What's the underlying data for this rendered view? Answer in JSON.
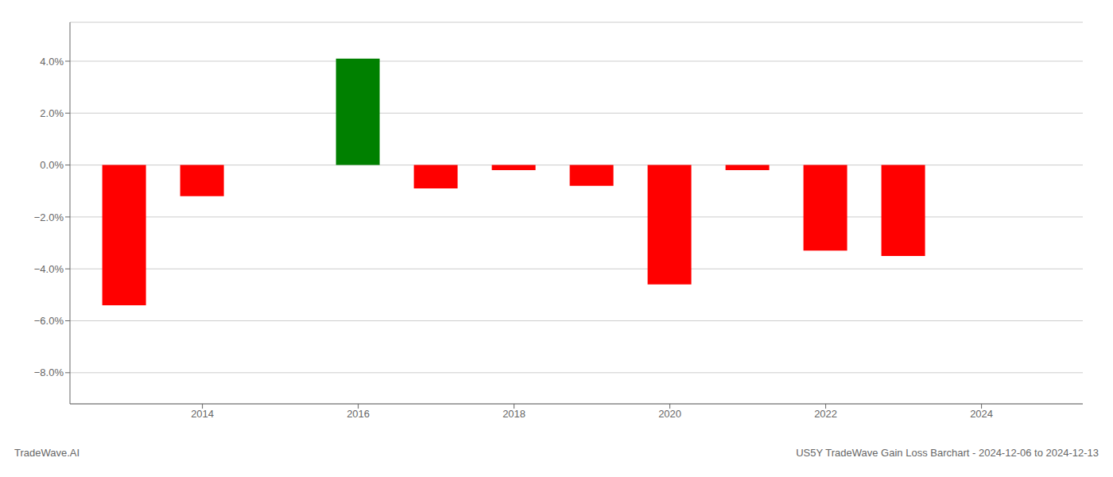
{
  "chart_data": {
    "type": "bar",
    "x": [
      2013,
      2014,
      2015,
      2016,
      2017,
      2018,
      2019,
      2020,
      2021,
      2022,
      2023,
      2024
    ],
    "values": [
      -0.054,
      -0.012,
      0.0,
      0.041,
      -0.009,
      -0.002,
      -0.008,
      -0.046,
      -0.002,
      -0.033,
      -0.035,
      0.0
    ],
    "colors": [
      "red",
      "red",
      "red",
      "green",
      "red",
      "red",
      "red",
      "red",
      "red",
      "red",
      "red",
      "red"
    ],
    "xlim": [
      2012.3,
      2025.3
    ],
    "xticks": [
      2014,
      2016,
      2018,
      2020,
      2022,
      2024
    ],
    "ylim": [
      -0.092,
      0.055
    ],
    "yticks": [
      {
        "value": -0.08,
        "label": "−8.0%"
      },
      {
        "value": -0.06,
        "label": "−6.0%"
      },
      {
        "value": -0.04,
        "label": "−4.0%"
      },
      {
        "value": -0.02,
        "label": "−2.0%"
      },
      {
        "value": 0.0,
        "label": "0.0%"
      },
      {
        "value": 0.02,
        "label": "2.0%"
      },
      {
        "value": 0.04,
        "label": "4.0%"
      }
    ],
    "grid": "y",
    "annotations": [
      "TradeWave.AI",
      "US5Y TradeWave Gain Loss Barchart - 2024-12-06 to 2024-12-13"
    ]
  }
}
